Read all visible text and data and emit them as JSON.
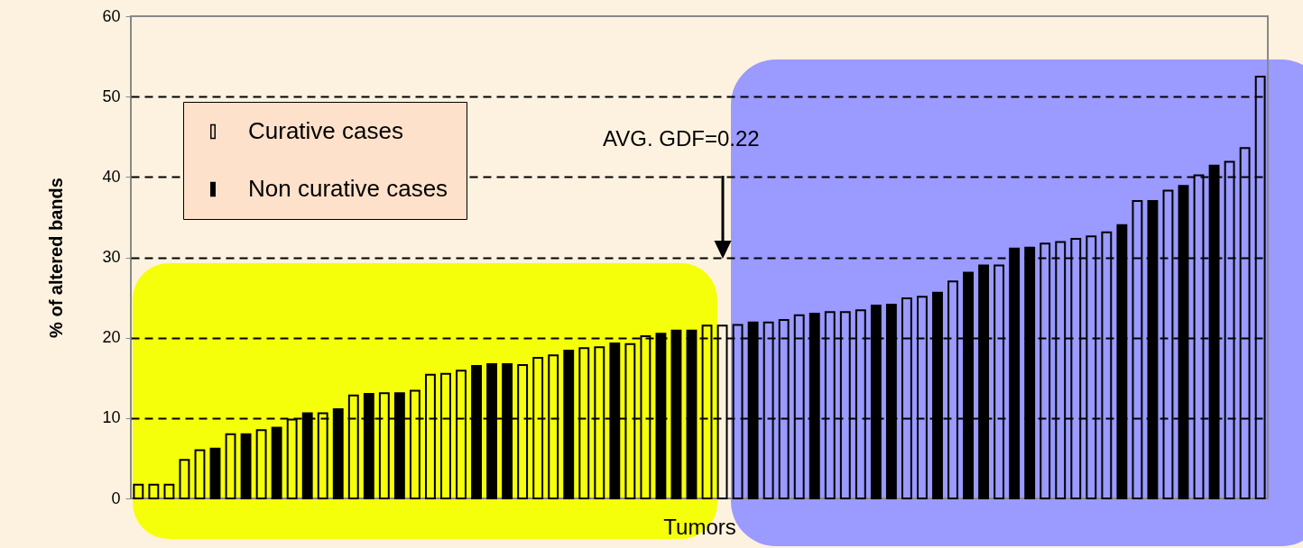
{
  "chart_data": {
    "type": "bar",
    "xlabel": "Tumors",
    "ylabel": "% of altered bands",
    "categories": [
      null,
      null,
      null,
      null,
      null,
      null,
      null,
      null,
      null,
      null,
      null,
      null,
      null,
      null,
      null,
      null,
      null,
      null,
      null,
      null,
      null,
      null,
      null,
      null,
      null,
      null,
      null,
      null,
      null,
      null,
      null,
      null,
      null,
      null,
      null,
      null,
      null,
      null,
      null,
      null,
      null,
      null,
      null,
      null,
      null,
      null,
      null,
      null,
      null,
      null,
      null,
      null,
      null,
      null,
      null,
      null,
      null,
      null,
      null,
      null,
      null,
      null,
      null,
      null,
      null,
      null,
      null,
      null,
      null,
      null,
      null,
      null,
      null,
      null
    ],
    "series": [
      {
        "name": "Curative cases",
        "color": null,
        "values": [
          1.7,
          1.7,
          1.7,
          4.8,
          6.0,
          null,
          8.0,
          null,
          8.5,
          null,
          9.8,
          null,
          10.6,
          null,
          12.8,
          null,
          13.1,
          null,
          13.4,
          15.4,
          15.5,
          15.9,
          null,
          null,
          null,
          16.6,
          17.5,
          17.8,
          null,
          18.7,
          18.8,
          null,
          19.2,
          20.2,
          null,
          null,
          null,
          21.5,
          21.5,
          21.6,
          null,
          21.9,
          22.2,
          22.8,
          null,
          23.2,
          23.2,
          23.4,
          null,
          null,
          24.9,
          25.1,
          null,
          27.0,
          null,
          null,
          29.0,
          null,
          null,
          31.7,
          31.9,
          32.3,
          32.6,
          33.1,
          null,
          37.0,
          null,
          38.3,
          null,
          40.2,
          null,
          41.9,
          43.6,
          52.5
        ]
      },
      {
        "name": "Non curative cases",
        "color": "#000000",
        "values": [
          null,
          null,
          null,
          null,
          null,
          6.2,
          null,
          8.0,
          null,
          8.8,
          null,
          10.6,
          null,
          11.1,
          null,
          13.0,
          null,
          13.1,
          null,
          null,
          null,
          null,
          16.5,
          16.7,
          16.7,
          null,
          null,
          null,
          18.4,
          null,
          null,
          19.3,
          null,
          null,
          20.5,
          20.9,
          20.9,
          null,
          null,
          null,
          21.9,
          null,
          null,
          null,
          23.0,
          null,
          null,
          null,
          24.0,
          24.1,
          null,
          null,
          25.6,
          null,
          28.1,
          29.0,
          null,
          31.1,
          31.2,
          null,
          null,
          null,
          null,
          null,
          34.0,
          null,
          37.0,
          null,
          38.9,
          null,
          41.4,
          null,
          null,
          null
        ]
      }
    ],
    "ylim": [
      0,
      60
    ],
    "yticks": [
      0,
      10,
      20,
      30,
      40,
      50,
      60
    ],
    "grid": "y",
    "legend": "top left",
    "tick_labels": "y",
    "annotations": [
      "AVG. GDF=0.22"
    ]
  }
}
